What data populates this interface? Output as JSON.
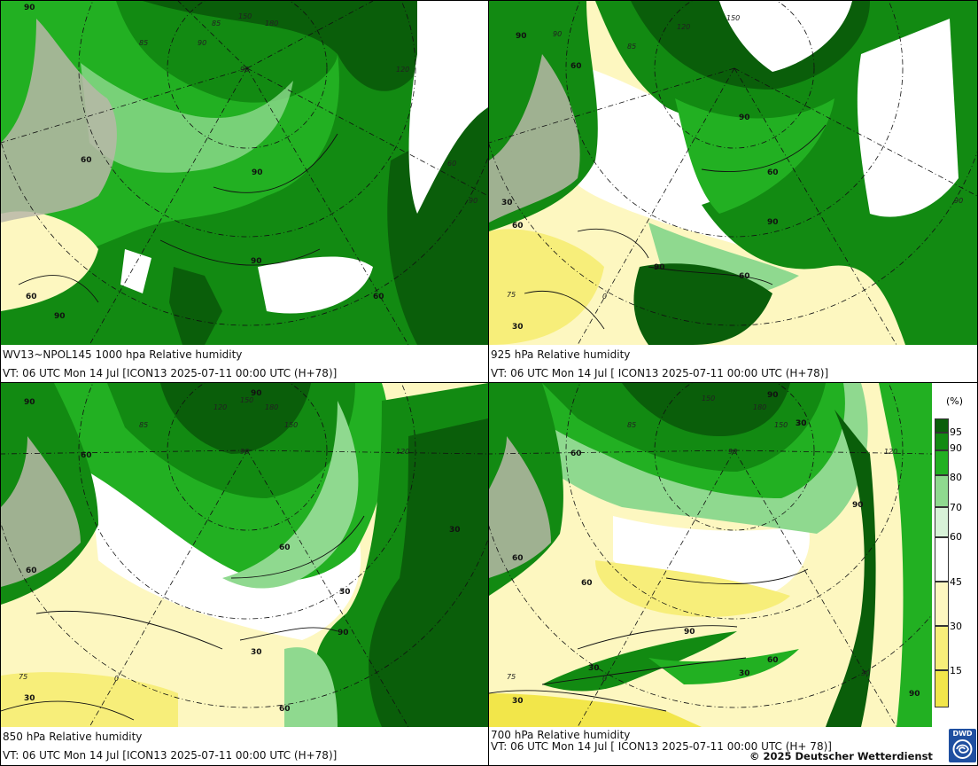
{
  "panels": [
    {
      "id": "p1000",
      "caption_line1": "WV13~NPOL145 1000 hpa Relative humidity",
      "caption_line2": "VT: 06 UTC Mon  14 Jul [ICON13 2025-07-11 00:00 UTC (H+78)]",
      "contour_labels": [
        "90",
        "90",
        "90",
        "60",
        "60",
        "90",
        "60"
      ],
      "grid_labels": [
        "150",
        "180",
        "120",
        "90",
        "85",
        "90",
        "85",
        "60",
        "90"
      ]
    },
    {
      "id": "p925",
      "caption_line1": "925 hPa Relative humidity",
      "caption_line2": "VT: 06 UTC Mon  14 Jul [ ICON13 2025-07-11 00:00 UTC (H+78)]",
      "contour_labels": [
        "90",
        "60",
        "90",
        "60",
        "90",
        "60",
        "90",
        "60",
        "30",
        "30"
      ],
      "grid_labels": [
        "120",
        "150",
        "90",
        "85",
        "90",
        "75",
        "0"
      ]
    },
    {
      "id": "p850",
      "caption_line1": "850 hPa  Relative humidity",
      "caption_line2": "VT: 06 UTC Mon  14 Jul [ICON13 2025-07-11 00:00 UTC (H+78)]",
      "contour_labels": [
        "90",
        "90",
        "60",
        "60",
        "90",
        "30",
        "30",
        "60",
        "30",
        "60",
        "30"
      ],
      "grid_labels": [
        "120",
        "150",
        "180",
        "150",
        "85",
        "120",
        "90",
        "75",
        "0"
      ]
    },
    {
      "id": "p700",
      "caption_line1": "700 hPa Relative humidity",
      "caption_line2": "VT: 06 UTC Mon  14 Jul [ ICON13 2025-07-11 00:00 UTC  (H+ 78)]",
      "contour_labels": [
        "90",
        "60",
        "30",
        "60",
        "60",
        "90",
        "90",
        "60",
        "30",
        "30",
        "30",
        "90",
        "30"
      ],
      "grid_labels": [
        "150",
        "180",
        "150",
        "85",
        "120",
        "90",
        "75",
        "0",
        "30"
      ]
    }
  ],
  "legend": {
    "title": "(%)",
    "levels": [
      {
        "label": "95",
        "color": "#0a5e0a"
      },
      {
        "label": "90",
        "color": "#128a12"
      },
      {
        "label": "80",
        "color": "#22b022"
      },
      {
        "label": "70",
        "color": "#8fd98f"
      },
      {
        "label": "60",
        "color": "#d8f2d8"
      },
      {
        "label": "45",
        "color": "#ffffff"
      },
      {
        "label": "30",
        "color": "#fdf7c0"
      },
      {
        "label": "15",
        "color": "#f7ee7a"
      }
    ],
    "bottom_color": "#f2e64a"
  },
  "copyright": "© 2025 Deutscher Wetterdienst",
  "logo_text": "DWD",
  "colors": {
    "rh95": "#0a5e0a",
    "rh90": "#128a12",
    "rh80": "#22b022",
    "rh70": "#8fd98f",
    "rh60": "#d8f2d8",
    "rh45": "#ffffff",
    "rh30": "#fdf7c0",
    "rh15": "#f7ee7a",
    "land": "#b9b7a8"
  }
}
